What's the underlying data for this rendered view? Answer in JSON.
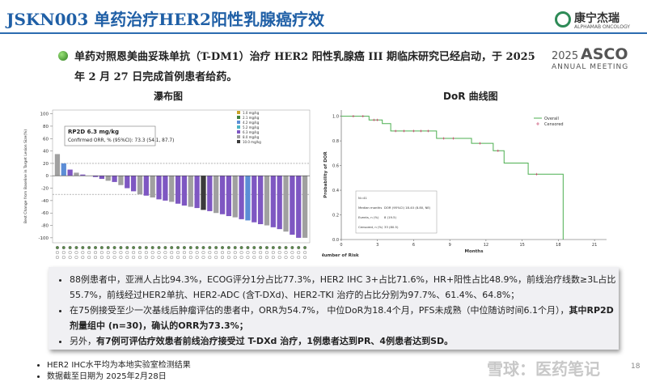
{
  "header": {
    "title": "JSKN003 单药治疗HER2阳性乳腺癌疗效",
    "logo": "康宁杰瑞",
    "logo_sub": "ALPHAMAB ONCOLOGY",
    "asco_year": "2025",
    "asco": "ASCO",
    "asco_sub": "ANNUAL MEETING"
  },
  "intro": "单药对照恩美曲妥珠单抗（T-DM1）治疗 HER2 阳性乳腺癌 III 期临床研究已经启动，于 2025 年 2 月 27 日完成首例患者给药。",
  "chart_data": [
    {
      "type": "waterfall",
      "title": "瀑布图",
      "y_label": "Best Change from Baseline in Target Lesion Size(%)",
      "annotation": {
        "title": "RP2D 6.3 mg/kg",
        "text": "Confirmed ORR, % (95%CI): 73.3 (54.1, 87.7)"
      },
      "legend": [
        {
          "name": "1.0 mg/kg",
          "color": "#c9a227"
        },
        {
          "name": "2.1 mg/kg",
          "color": "#3f7f3f"
        },
        {
          "name": "4.2 mg/kg",
          "color": "#5c8dd6"
        },
        {
          "name": "5.2 mg/kg",
          "color": "#4bb3c4"
        },
        {
          "name": "6.3 mg/kg",
          "color": "#7e57c2"
        },
        {
          "name": "8.0 mg/kg",
          "color": "#a0a0a0"
        },
        {
          "name": "10.0 mg/kg",
          "color": "#3b3b3b"
        }
      ],
      "values": [
        35,
        20,
        10,
        5,
        2,
        0,
        -2,
        -5,
        -8,
        -10,
        -15,
        -20,
        -25,
        -30,
        -32,
        -35,
        -38,
        -40,
        -42,
        -45,
        -48,
        -50,
        -52,
        -55,
        -57,
        -60,
        -62,
        -65,
        -67,
        -70,
        -72,
        -75,
        -78,
        -80,
        -83,
        -86,
        -90,
        -95,
        -100,
        -100
      ],
      "colors": [
        "#a0a0a0",
        "#5c8dd6",
        "#7e57c2",
        "#a0a0a0",
        "#7e57c2",
        "#a0a0a0",
        "#7e57c2",
        "#7e57c2",
        "#a0a0a0",
        "#7e57c2",
        "#a0a0a0",
        "#7e57c2",
        "#7e57c2",
        "#a0a0a0",
        "#7e57c2",
        "#a0a0a0",
        "#7e57c2",
        "#7e57c2",
        "#a0a0a0",
        "#7e57c2",
        "#7e57c2",
        "#a0a0a0",
        "#7e57c2",
        "#3b3b3b",
        "#7e57c2",
        "#a0a0a0",
        "#7e57c2",
        "#7e57c2",
        "#a0a0a0",
        "#7e57c2",
        "#5c8dd6",
        "#7e57c2",
        "#7e57c2",
        "#a0a0a0",
        "#7e57c2",
        "#7e57c2",
        "#a0a0a0",
        "#7e57c2",
        "#7e57c2",
        "#a0a0a0"
      ],
      "ylim": [
        -108,
        106
      ],
      "yticks": [
        100,
        80,
        60,
        40,
        20,
        0,
        -20,
        -40,
        -60,
        -80,
        -100
      ],
      "ref_lines": [
        20,
        -30
      ]
    },
    {
      "type": "step",
      "title": "DoR 曲线图",
      "y_label": "Probability of DOR",
      "x_label": "Months",
      "risk_label": "Number of Risk",
      "x": [
        0,
        2.3,
        3.4,
        4.1,
        7.9,
        10.8,
        12.6,
        13.5,
        15.5,
        18.4
      ],
      "values": [
        1.0,
        0.97,
        0.94,
        0.88,
        0.82,
        0.78,
        0.72,
        0.62,
        0.53,
        0.0
      ],
      "censored_x": [
        1,
        1.8,
        2.7,
        3,
        4.5,
        5.2,
        6,
        6.6,
        7.2,
        8.5,
        9.3,
        11.5,
        13,
        16.2
      ],
      "series_names": [
        "Overall",
        "Censored"
      ],
      "color": "#4caf50",
      "censor_color": "#c0305a",
      "inset": [
        [
          "N=41",
          ""
        ],
        [
          "Median months",
          "DOR (95%CI)  18.40 (8.80, NE)"
        ],
        [
          "Events, n (%)",
          "8 (19.5)"
        ],
        [
          "Censored, n (%)",
          "33 (80.5)"
        ]
      ],
      "xlim": [
        0,
        22
      ],
      "xticks": [
        0,
        3,
        6,
        9,
        12,
        15,
        18,
        21
      ],
      "ylim": [
        0,
        1.05
      ],
      "yticks": [
        {
          "value": 0,
          "label": "0.0"
        },
        {
          "value": 0.2,
          "label": "0.2"
        },
        {
          "value": 0.4,
          "label": "0.4"
        },
        {
          "value": 0.6,
          "label": "0.6"
        },
        {
          "value": 0.8,
          "label": "0.8"
        },
        {
          "value": 1,
          "label": "1.0"
        }
      ]
    }
  ],
  "bullets": [
    [
      {
        "text": "88例患者中，亚洲人占比94.3%，ECOG评分1分占比77.3%，HER2 IHC 3+占比71.6%，HR+阳性占比48.9%，前线治疗线数≥3L占比55.7%，前线经过HER2单抗、HER2-ADC (含T-DXd)、HER2-TKI 治疗的占比分别为97.7%、61.4%、64.8%；",
        "bold": false
      }
    ],
    [
      {
        "text": "在75例接受至少一次基线后肿瘤评估的患者中，ORR为54.7%， 中位DoR为18.4个月，PFS未成熟（中位随访时间6.1个月），",
        "bold": false
      },
      {
        "text": "其中RP2D剂量组中 (n=30)，确认的ORR为73.3%；",
        "bold": true
      }
    ],
    [
      {
        "text": "另外，",
        "bold": false
      },
      {
        "text": "有7例可评估疗效患者前线治疗接受过 T-DXd 治疗，1例患者达到PR、4例患者达到SD。",
        "bold": true
      }
    ]
  ],
  "footnotes": [
    "HER2 IHC水平均为本地实验室检测结果",
    "数据截至日期为 2025年2月28日"
  ],
  "watermark": "雪球：医药笔记",
  "page_number": "18"
}
